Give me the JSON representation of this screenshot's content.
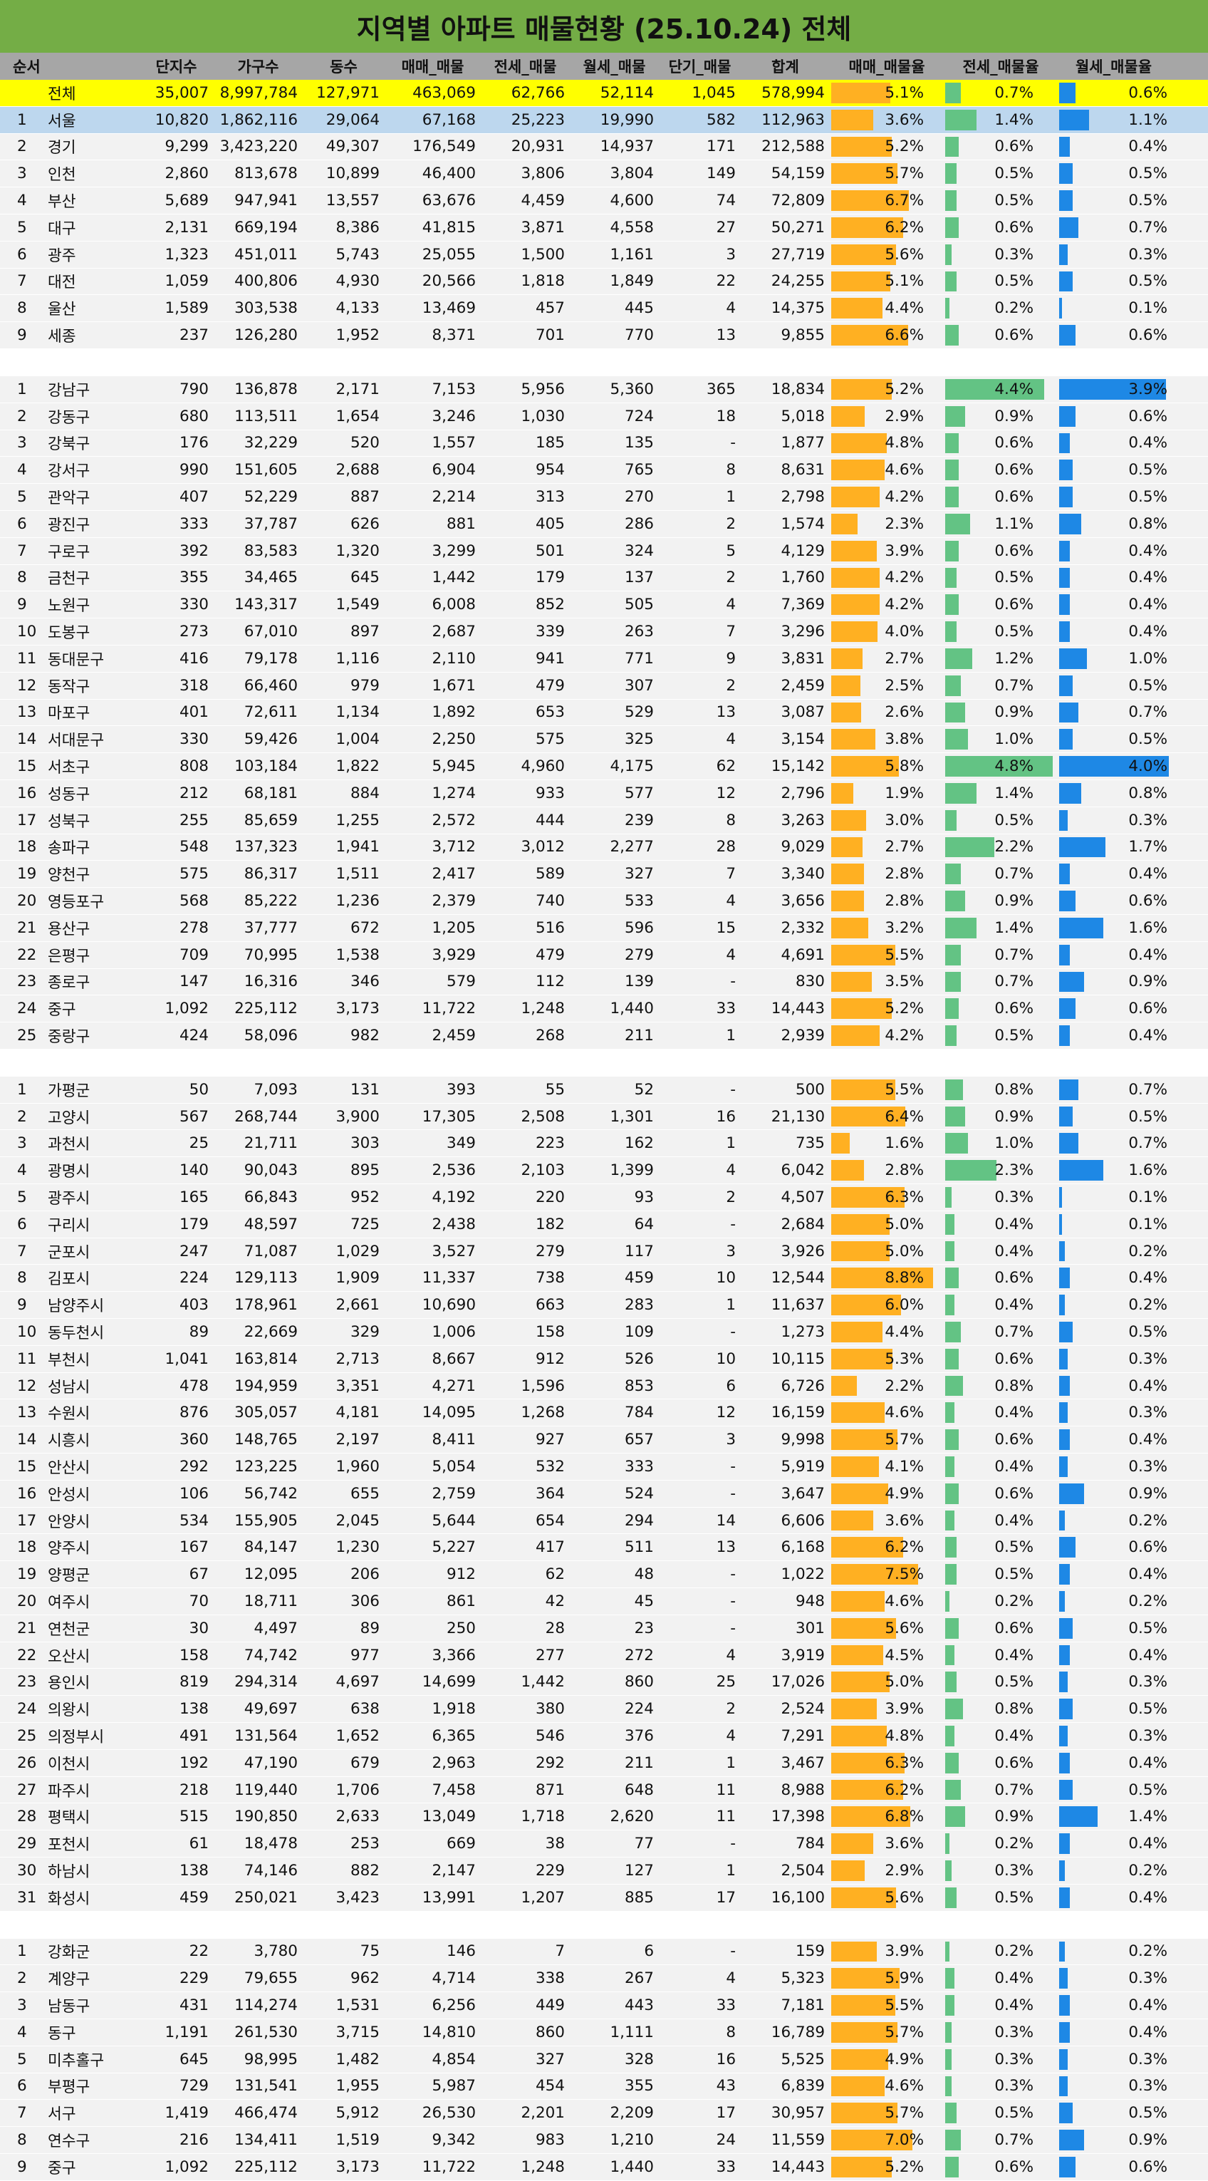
{
  "title": "지역별 아파트 매물현황 (25.10.24) 전체",
  "headers": [
    "순서",
    "",
    "단지수",
    "가구수",
    "동수",
    "매매_매물",
    "전세_매물",
    "월세_매물",
    "단기_매물",
    "합계",
    "매매_매물율",
    "전세_매물율",
    "월세_매물율"
  ],
  "colors": {
    "title_bg": "#74ad46",
    "header_bg": "#a6a6a6",
    "total_bg": "#ffff00",
    "seoul_bg": "#bdd7ee",
    "row_bg": "#f2f2f2",
    "bar_sale": "#ffb022",
    "bar_jeonse": "#63c384",
    "bar_wolse": "#1e88e5"
  },
  "sections": [
    {
      "rows": [
        [
          "",
          "전체",
          "35,007",
          "8,997,784",
          "127,971",
          "463,069",
          "62,766",
          "52,114",
          "1,045",
          "578,994",
          "5.1%",
          "0.7%",
          "0.6%"
        ],
        [
          "1",
          "서울",
          "10,820",
          "1,862,116",
          "29,064",
          "67,168",
          "25,223",
          "19,990",
          "582",
          "112,963",
          "3.6%",
          "1.4%",
          "1.1%"
        ],
        [
          "2",
          "경기",
          "9,299",
          "3,423,220",
          "49,307",
          "176,549",
          "20,931",
          "14,937",
          "171",
          "212,588",
          "5.2%",
          "0.6%",
          "0.4%"
        ],
        [
          "3",
          "인천",
          "2,860",
          "813,678",
          "10,899",
          "46,400",
          "3,806",
          "3,804",
          "149",
          "54,159",
          "5.7%",
          "0.5%",
          "0.5%"
        ],
        [
          "4",
          "부산",
          "5,689",
          "947,941",
          "13,557",
          "63,676",
          "4,459",
          "4,600",
          "74",
          "72,809",
          "6.7%",
          "0.5%",
          "0.5%"
        ],
        [
          "5",
          "대구",
          "2,131",
          "669,194",
          "8,386",
          "41,815",
          "3,871",
          "4,558",
          "27",
          "50,271",
          "6.2%",
          "0.6%",
          "0.7%"
        ],
        [
          "6",
          "광주",
          "1,323",
          "451,011",
          "5,743",
          "25,055",
          "1,500",
          "1,161",
          "3",
          "27,719",
          "5.6%",
          "0.3%",
          "0.3%"
        ],
        [
          "7",
          "대전",
          "1,059",
          "400,806",
          "4,930",
          "20,566",
          "1,818",
          "1,849",
          "22",
          "24,255",
          "5.1%",
          "0.5%",
          "0.5%"
        ],
        [
          "8",
          "울산",
          "1,589",
          "303,538",
          "4,133",
          "13,469",
          "457",
          "445",
          "4",
          "14,375",
          "4.4%",
          "0.2%",
          "0.1%"
        ],
        [
          "9",
          "세종",
          "237",
          "126,280",
          "1,952",
          "8,371",
          "701",
          "770",
          "13",
          "9,855",
          "6.6%",
          "0.6%",
          "0.6%"
        ]
      ]
    },
    {
      "rows": [
        [
          "1",
          "강남구",
          "790",
          "136,878",
          "2,171",
          "7,153",
          "5,956",
          "5,360",
          "365",
          "18,834",
          "5.2%",
          "4.4%",
          "3.9%"
        ],
        [
          "2",
          "강동구",
          "680",
          "113,511",
          "1,654",
          "3,246",
          "1,030",
          "724",
          "18",
          "5,018",
          "2.9%",
          "0.9%",
          "0.6%"
        ],
        [
          "3",
          "강북구",
          "176",
          "32,229",
          "520",
          "1,557",
          "185",
          "135",
          "-",
          "1,877",
          "4.8%",
          "0.6%",
          "0.4%"
        ],
        [
          "4",
          "강서구",
          "990",
          "151,605",
          "2,688",
          "6,904",
          "954",
          "765",
          "8",
          "8,631",
          "4.6%",
          "0.6%",
          "0.5%"
        ],
        [
          "5",
          "관악구",
          "407",
          "52,229",
          "887",
          "2,214",
          "313",
          "270",
          "1",
          "2,798",
          "4.2%",
          "0.6%",
          "0.5%"
        ],
        [
          "6",
          "광진구",
          "333",
          "37,787",
          "626",
          "881",
          "405",
          "286",
          "2",
          "1,574",
          "2.3%",
          "1.1%",
          "0.8%"
        ],
        [
          "7",
          "구로구",
          "392",
          "83,583",
          "1,320",
          "3,299",
          "501",
          "324",
          "5",
          "4,129",
          "3.9%",
          "0.6%",
          "0.4%"
        ],
        [
          "8",
          "금천구",
          "355",
          "34,465",
          "645",
          "1,442",
          "179",
          "137",
          "2",
          "1,760",
          "4.2%",
          "0.5%",
          "0.4%"
        ],
        [
          "9",
          "노원구",
          "330",
          "143,317",
          "1,549",
          "6,008",
          "852",
          "505",
          "4",
          "7,369",
          "4.2%",
          "0.6%",
          "0.4%"
        ],
        [
          "10",
          "도봉구",
          "273",
          "67,010",
          "897",
          "2,687",
          "339",
          "263",
          "7",
          "3,296",
          "4.0%",
          "0.5%",
          "0.4%"
        ],
        [
          "11",
          "동대문구",
          "416",
          "79,178",
          "1,116",
          "2,110",
          "941",
          "771",
          "9",
          "3,831",
          "2.7%",
          "1.2%",
          "1.0%"
        ],
        [
          "12",
          "동작구",
          "318",
          "66,460",
          "979",
          "1,671",
          "479",
          "307",
          "2",
          "2,459",
          "2.5%",
          "0.7%",
          "0.5%"
        ],
        [
          "13",
          "마포구",
          "401",
          "72,611",
          "1,134",
          "1,892",
          "653",
          "529",
          "13",
          "3,087",
          "2.6%",
          "0.9%",
          "0.7%"
        ],
        [
          "14",
          "서대문구",
          "330",
          "59,426",
          "1,004",
          "2,250",
          "575",
          "325",
          "4",
          "3,154",
          "3.8%",
          "1.0%",
          "0.5%"
        ],
        [
          "15",
          "서초구",
          "808",
          "103,184",
          "1,822",
          "5,945",
          "4,960",
          "4,175",
          "62",
          "15,142",
          "5.8%",
          "4.8%",
          "4.0%"
        ],
        [
          "16",
          "성동구",
          "212",
          "68,181",
          "884",
          "1,274",
          "933",
          "577",
          "12",
          "2,796",
          "1.9%",
          "1.4%",
          "0.8%"
        ],
        [
          "17",
          "성북구",
          "255",
          "85,659",
          "1,255",
          "2,572",
          "444",
          "239",
          "8",
          "3,263",
          "3.0%",
          "0.5%",
          "0.3%"
        ],
        [
          "18",
          "송파구",
          "548",
          "137,323",
          "1,941",
          "3,712",
          "3,012",
          "2,277",
          "28",
          "9,029",
          "2.7%",
          "2.2%",
          "1.7%"
        ],
        [
          "19",
          "양천구",
          "575",
          "86,317",
          "1,511",
          "2,417",
          "589",
          "327",
          "7",
          "3,340",
          "2.8%",
          "0.7%",
          "0.4%"
        ],
        [
          "20",
          "영등포구",
          "568",
          "85,222",
          "1,236",
          "2,379",
          "740",
          "533",
          "4",
          "3,656",
          "2.8%",
          "0.9%",
          "0.6%"
        ],
        [
          "21",
          "용산구",
          "278",
          "37,777",
          "672",
          "1,205",
          "516",
          "596",
          "15",
          "2,332",
          "3.2%",
          "1.4%",
          "1.6%"
        ],
        [
          "22",
          "은평구",
          "709",
          "70,995",
          "1,538",
          "3,929",
          "479",
          "279",
          "4",
          "4,691",
          "5.5%",
          "0.7%",
          "0.4%"
        ],
        [
          "23",
          "종로구",
          "147",
          "16,316",
          "346",
          "579",
          "112",
          "139",
          "-",
          "830",
          "3.5%",
          "0.7%",
          "0.9%"
        ],
        [
          "24",
          "중구",
          "1,092",
          "225,112",
          "3,173",
          "11,722",
          "1,248",
          "1,440",
          "33",
          "14,443",
          "5.2%",
          "0.6%",
          "0.6%"
        ],
        [
          "25",
          "중랑구",
          "424",
          "58,096",
          "982",
          "2,459",
          "268",
          "211",
          "1",
          "2,939",
          "4.2%",
          "0.5%",
          "0.4%"
        ]
      ]
    },
    {
      "rows": [
        [
          "1",
          "가평군",
          "50",
          "7,093",
          "131",
          "393",
          "55",
          "52",
          "-",
          "500",
          "5.5%",
          "0.8%",
          "0.7%"
        ],
        [
          "2",
          "고양시",
          "567",
          "268,744",
          "3,900",
          "17,305",
          "2,508",
          "1,301",
          "16",
          "21,130",
          "6.4%",
          "0.9%",
          "0.5%"
        ],
        [
          "3",
          "과천시",
          "25",
          "21,711",
          "303",
          "349",
          "223",
          "162",
          "1",
          "735",
          "1.6%",
          "1.0%",
          "0.7%"
        ],
        [
          "4",
          "광명시",
          "140",
          "90,043",
          "895",
          "2,536",
          "2,103",
          "1,399",
          "4",
          "6,042",
          "2.8%",
          "2.3%",
          "1.6%"
        ],
        [
          "5",
          "광주시",
          "165",
          "66,843",
          "952",
          "4,192",
          "220",
          "93",
          "2",
          "4,507",
          "6.3%",
          "0.3%",
          "0.1%"
        ],
        [
          "6",
          "구리시",
          "179",
          "48,597",
          "725",
          "2,438",
          "182",
          "64",
          "-",
          "2,684",
          "5.0%",
          "0.4%",
          "0.1%"
        ],
        [
          "7",
          "군포시",
          "247",
          "71,087",
          "1,029",
          "3,527",
          "279",
          "117",
          "3",
          "3,926",
          "5.0%",
          "0.4%",
          "0.2%"
        ],
        [
          "8",
          "김포시",
          "224",
          "129,113",
          "1,909",
          "11,337",
          "738",
          "459",
          "10",
          "12,544",
          "8.8%",
          "0.6%",
          "0.4%"
        ],
        [
          "9",
          "남양주시",
          "403",
          "178,961",
          "2,661",
          "10,690",
          "663",
          "283",
          "1",
          "11,637",
          "6.0%",
          "0.4%",
          "0.2%"
        ],
        [
          "10",
          "동두천시",
          "89",
          "22,669",
          "329",
          "1,006",
          "158",
          "109",
          "-",
          "1,273",
          "4.4%",
          "0.7%",
          "0.5%"
        ],
        [
          "11",
          "부천시",
          "1,041",
          "163,814",
          "2,713",
          "8,667",
          "912",
          "526",
          "10",
          "10,115",
          "5.3%",
          "0.6%",
          "0.3%"
        ],
        [
          "12",
          "성남시",
          "478",
          "194,959",
          "3,351",
          "4,271",
          "1,596",
          "853",
          "6",
          "6,726",
          "2.2%",
          "0.8%",
          "0.4%"
        ],
        [
          "13",
          "수원시",
          "876",
          "305,057",
          "4,181",
          "14,095",
          "1,268",
          "784",
          "12",
          "16,159",
          "4.6%",
          "0.4%",
          "0.3%"
        ],
        [
          "14",
          "시흥시",
          "360",
          "148,765",
          "2,197",
          "8,411",
          "927",
          "657",
          "3",
          "9,998",
          "5.7%",
          "0.6%",
          "0.4%"
        ],
        [
          "15",
          "안산시",
          "292",
          "123,225",
          "1,960",
          "5,054",
          "532",
          "333",
          "-",
          "5,919",
          "4.1%",
          "0.4%",
          "0.3%"
        ],
        [
          "16",
          "안성시",
          "106",
          "56,742",
          "655",
          "2,759",
          "364",
          "524",
          "-",
          "3,647",
          "4.9%",
          "0.6%",
          "0.9%"
        ],
        [
          "17",
          "안양시",
          "534",
          "155,905",
          "2,045",
          "5,644",
          "654",
          "294",
          "14",
          "6,606",
          "3.6%",
          "0.4%",
          "0.2%"
        ],
        [
          "18",
          "양주시",
          "167",
          "84,147",
          "1,230",
          "5,227",
          "417",
          "511",
          "13",
          "6,168",
          "6.2%",
          "0.5%",
          "0.6%"
        ],
        [
          "19",
          "양평군",
          "67",
          "12,095",
          "206",
          "912",
          "62",
          "48",
          "-",
          "1,022",
          "7.5%",
          "0.5%",
          "0.4%"
        ],
        [
          "20",
          "여주시",
          "70",
          "18,711",
          "306",
          "861",
          "42",
          "45",
          "-",
          "948",
          "4.6%",
          "0.2%",
          "0.2%"
        ],
        [
          "21",
          "연천군",
          "30",
          "4,497",
          "89",
          "250",
          "28",
          "23",
          "-",
          "301",
          "5.6%",
          "0.6%",
          "0.5%"
        ],
        [
          "22",
          "오산시",
          "158",
          "74,742",
          "977",
          "3,366",
          "277",
          "272",
          "4",
          "3,919",
          "4.5%",
          "0.4%",
          "0.4%"
        ],
        [
          "23",
          "용인시",
          "819",
          "294,314",
          "4,697",
          "14,699",
          "1,442",
          "860",
          "25",
          "17,026",
          "5.0%",
          "0.5%",
          "0.3%"
        ],
        [
          "24",
          "의왕시",
          "138",
          "49,697",
          "638",
          "1,918",
          "380",
          "224",
          "2",
          "2,524",
          "3.9%",
          "0.8%",
          "0.5%"
        ],
        [
          "25",
          "의정부시",
          "491",
          "131,564",
          "1,652",
          "6,365",
          "546",
          "376",
          "4",
          "7,291",
          "4.8%",
          "0.4%",
          "0.3%"
        ],
        [
          "26",
          "이천시",
          "192",
          "47,190",
          "679",
          "2,963",
          "292",
          "211",
          "1",
          "3,467",
          "6.3%",
          "0.6%",
          "0.4%"
        ],
        [
          "27",
          "파주시",
          "218",
          "119,440",
          "1,706",
          "7,458",
          "871",
          "648",
          "11",
          "8,988",
          "6.2%",
          "0.7%",
          "0.5%"
        ],
        [
          "28",
          "평택시",
          "515",
          "190,850",
          "2,633",
          "13,049",
          "1,718",
          "2,620",
          "11",
          "17,398",
          "6.8%",
          "0.9%",
          "1.4%"
        ],
        [
          "29",
          "포천시",
          "61",
          "18,478",
          "253",
          "669",
          "38",
          "77",
          "-",
          "784",
          "3.6%",
          "0.2%",
          "0.4%"
        ],
        [
          "30",
          "하남시",
          "138",
          "74,146",
          "882",
          "2,147",
          "229",
          "127",
          "1",
          "2,504",
          "2.9%",
          "0.3%",
          "0.2%"
        ],
        [
          "31",
          "화성시",
          "459",
          "250,021",
          "3,423",
          "13,991",
          "1,207",
          "885",
          "17",
          "16,100",
          "5.6%",
          "0.5%",
          "0.4%"
        ]
      ]
    },
    {
      "rows": [
        [
          "1",
          "강화군",
          "22",
          "3,780",
          "75",
          "146",
          "7",
          "6",
          "-",
          "159",
          "3.9%",
          "0.2%",
          "0.2%"
        ],
        [
          "2",
          "계양구",
          "229",
          "79,655",
          "962",
          "4,714",
          "338",
          "267",
          "4",
          "5,323",
          "5.9%",
          "0.4%",
          "0.3%"
        ],
        [
          "3",
          "남동구",
          "431",
          "114,274",
          "1,531",
          "6,256",
          "449",
          "443",
          "33",
          "7,181",
          "5.5%",
          "0.4%",
          "0.4%"
        ],
        [
          "4",
          "동구",
          "1,191",
          "261,530",
          "3,715",
          "14,810",
          "860",
          "1,111",
          "8",
          "16,789",
          "5.7%",
          "0.3%",
          "0.4%"
        ],
        [
          "5",
          "미추홀구",
          "645",
          "98,995",
          "1,482",
          "4,854",
          "327",
          "328",
          "16",
          "5,525",
          "4.9%",
          "0.3%",
          "0.3%"
        ],
        [
          "6",
          "부평구",
          "729",
          "131,541",
          "1,955",
          "5,987",
          "454",
          "355",
          "43",
          "6,839",
          "4.6%",
          "0.3%",
          "0.3%"
        ],
        [
          "7",
          "서구",
          "1,419",
          "466,474",
          "5,912",
          "26,530",
          "2,201",
          "2,209",
          "17",
          "30,957",
          "5.7%",
          "0.5%",
          "0.5%"
        ],
        [
          "8",
          "연수구",
          "216",
          "134,411",
          "1,519",
          "9,342",
          "983",
          "1,210",
          "24",
          "11,559",
          "7.0%",
          "0.7%",
          "0.9%"
        ],
        [
          "9",
          "중구",
          "1,092",
          "225,112",
          "3,173",
          "11,722",
          "1,248",
          "1,440",
          "33",
          "14,443",
          "5.2%",
          "0.6%",
          "0.6%"
        ]
      ]
    }
  ]
}
